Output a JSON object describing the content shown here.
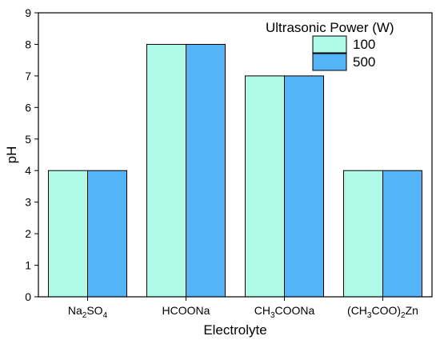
{
  "chart_data": {
    "type": "bar",
    "categories": [
      {
        "text": "Na2SO4",
        "parts": [
          [
            "Na",
            ""
          ],
          [
            "2",
            "sub"
          ],
          [
            "SO",
            ""
          ],
          [
            "4",
            "sub"
          ]
        ]
      },
      {
        "text": "HCOONa",
        "parts": [
          [
            "HCOONa",
            ""
          ]
        ]
      },
      {
        "text": "CH3COONa",
        "parts": [
          [
            "CH",
            ""
          ],
          [
            "3",
            "sub"
          ],
          [
            "COONa",
            ""
          ]
        ]
      },
      {
        "text": "(CH3COO)2Zn",
        "parts": [
          [
            "(CH",
            ""
          ],
          [
            "3",
            "sub"
          ],
          [
            "COO)",
            ""
          ],
          [
            "2",
            "sub"
          ],
          [
            "Zn",
            ""
          ]
        ]
      }
    ],
    "series": [
      {
        "name": "100",
        "values": [
          4,
          8,
          7,
          4
        ],
        "color": "#aefae6"
      },
      {
        "name": "500",
        "values": [
          4,
          8,
          7,
          4
        ],
        "color": "#55b4f8"
      }
    ],
    "xlabel": "Electrolyte",
    "ylabel": "pH",
    "ylim": [
      0,
      9
    ],
    "yticks": [
      0,
      1,
      2,
      3,
      4,
      5,
      6,
      7,
      8,
      9
    ],
    "grid": false,
    "legend": {
      "title": "Ultrasonic Power (W)",
      "placement": "top-right"
    }
  }
}
